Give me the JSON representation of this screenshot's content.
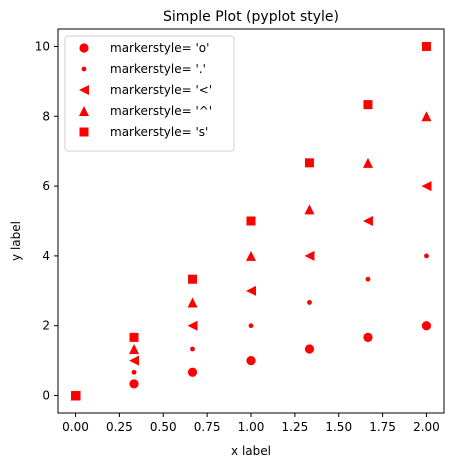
{
  "chart_data": {
    "type": "scatter",
    "title": "Simple Plot (pyplot style)",
    "xlabel": "x label",
    "ylabel": "y label",
    "xlim": [
      -0.1,
      2.1
    ],
    "ylim": [
      -0.5,
      10.5
    ],
    "xticks": [
      0.0,
      0.25,
      0.5,
      0.75,
      1.0,
      1.25,
      1.5,
      1.75,
      2.0
    ],
    "xtick_labels": [
      "0.00",
      "0.25",
      "0.50",
      "0.75",
      "1.00",
      "1.25",
      "1.50",
      "1.75",
      "2.00"
    ],
    "yticks": [
      0,
      2,
      4,
      6,
      8,
      10
    ],
    "ytick_labels": [
      "0",
      "2",
      "4",
      "6",
      "8",
      "10"
    ],
    "grid": false,
    "legend_position": "top-left",
    "color": "#ff0000",
    "x": [
      0.0,
      0.3333,
      0.6667,
      1.0,
      1.3333,
      1.6667,
      2.0
    ],
    "series": [
      {
        "name": "markerstyle= 'o'",
        "marker": "circle",
        "y": [
          0.0,
          0.3333,
          0.6667,
          1.0,
          1.3333,
          1.6667,
          2.0
        ]
      },
      {
        "name": "markerstyle= '.'",
        "marker": "point",
        "y": [
          0.0,
          0.6667,
          1.3333,
          2.0,
          2.6667,
          3.3333,
          4.0
        ]
      },
      {
        "name": "markerstyle= '<'",
        "marker": "triangle-left",
        "y": [
          0.0,
          1.0,
          2.0,
          3.0,
          4.0,
          5.0,
          6.0
        ]
      },
      {
        "name": "markerstyle= '^'",
        "marker": "triangle-up",
        "y": [
          0.0,
          1.3333,
          2.6667,
          4.0,
          5.3333,
          6.6667,
          8.0
        ]
      },
      {
        "name": "markerstyle= 's'",
        "marker": "square",
        "y": [
          0.0,
          1.6667,
          3.3333,
          5.0,
          6.6667,
          8.3333,
          10.0
        ]
      }
    ]
  }
}
